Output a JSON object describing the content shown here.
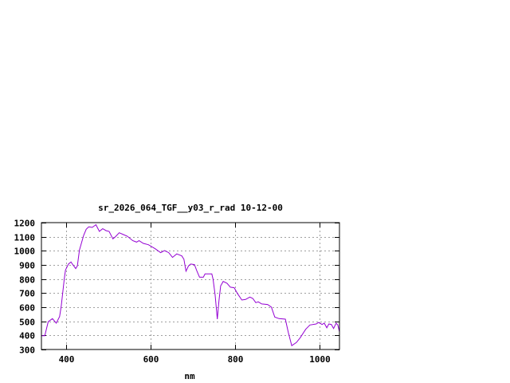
{
  "chart_data": {
    "type": "line",
    "title": "sr_2026_064_TGF__y03_r_rad 10-12-00",
    "xlabel": "nm",
    "ylabel": "",
    "xlim": [
      342,
      1047
    ],
    "ylim": [
      300,
      1200
    ],
    "xticks": [
      400,
      600,
      800,
      1000
    ],
    "yticks": [
      300,
      400,
      500,
      600,
      700,
      800,
      900,
      1000,
      1100,
      1200
    ],
    "grid": true,
    "legend": "none",
    "line_color": "#9400d3",
    "series": [
      {
        "x": [
          343,
          350,
          358,
          368,
          377,
          385,
          389,
          396,
          399,
          406,
          412,
          416,
          423,
          427,
          432,
          442,
          448,
          454,
          462,
          471,
          479,
          487,
          495,
          502,
          511,
          517,
          526,
          536,
          545,
          558,
          567,
          573,
          583,
          595,
          611,
          624,
          633,
          643,
          652,
          662,
          674,
          679,
          684,
          690,
          695,
          704,
          710,
          716,
          725,
          729,
          745,
          748,
          753,
          758,
          762,
          766,
          772,
          781,
          789,
          798,
          806,
          816,
          825,
          835,
          842,
          849,
          855,
          863,
          877,
          886,
          894,
          904,
          919,
          926,
          934,
          945,
          954,
          967,
          977,
          992,
          998,
          1006,
          1011,
          1017,
          1022,
          1028,
          1033,
          1039,
          1043,
          1047
        ],
        "y": [
          398,
          398,
          497,
          519,
          487,
          534,
          610,
          798,
          864,
          907,
          921,
          902,
          874,
          893,
          1006,
          1110,
          1153,
          1170,
          1166,
          1185,
          1138,
          1157,
          1143,
          1138,
          1085,
          1100,
          1128,
          1115,
          1104,
          1072,
          1062,
          1072,
          1053,
          1043,
          1015,
          987,
          1002,
          987,
          953,
          978,
          964,
          940,
          855,
          893,
          906,
          902,
          855,
          813,
          813,
          836,
          836,
          798,
          685,
          515,
          647,
          751,
          783,
          770,
          742,
          738,
          695,
          651,
          655,
          672,
          662,
          632,
          638,
          623,
          619,
          600,
          530,
          519,
          515,
          421,
          327,
          349,
          383,
          443,
          474,
          481,
          492,
          477,
          487,
          454,
          481,
          477,
          449,
          487,
          474,
          425
        ]
      }
    ]
  }
}
